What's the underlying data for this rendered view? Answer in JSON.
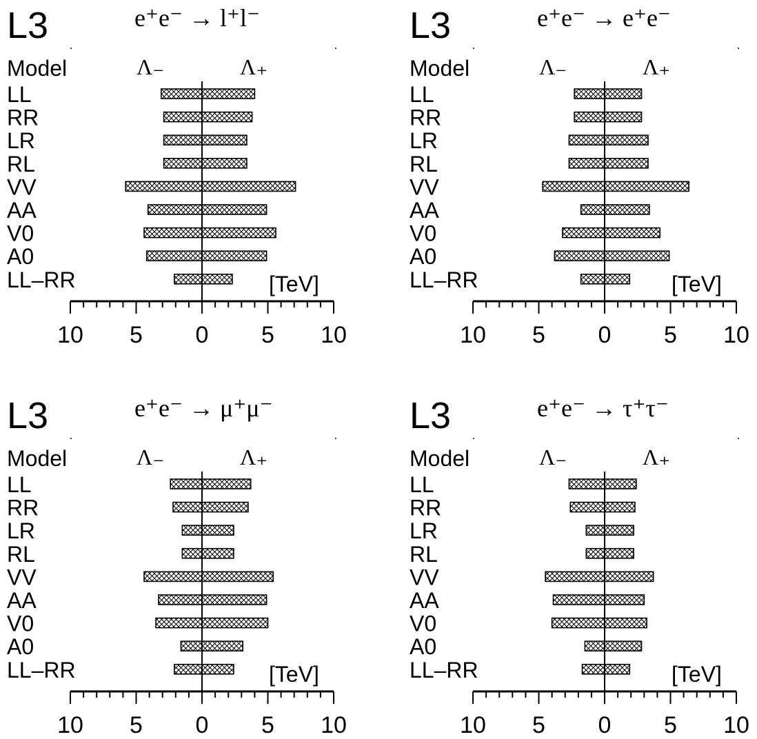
{
  "chart_data": [
    {
      "type": "bar",
      "experiment": "L3",
      "title": "e⁺e⁻ → l⁺l⁻",
      "header": {
        "model": "Model",
        "lambda_minus": "Λ₋",
        "lambda_plus": "Λ₊"
      },
      "unit": "[TeV]",
      "xticks": [
        "10",
        "5",
        "0",
        "5",
        "10"
      ],
      "xlim": [
        -10,
        10
      ],
      "series": [
        {
          "model": "LL",
          "lambda_minus": 3.1,
          "lambda_plus": 4.0
        },
        {
          "model": "RR",
          "lambda_minus": 2.9,
          "lambda_plus": 3.8
        },
        {
          "model": "LR",
          "lambda_minus": 2.9,
          "lambda_plus": 3.4
        },
        {
          "model": "RL",
          "lambda_minus": 2.9,
          "lambda_plus": 3.4
        },
        {
          "model": "VV",
          "lambda_minus": 5.8,
          "lambda_plus": 7.1
        },
        {
          "model": "AA",
          "lambda_minus": 4.1,
          "lambda_plus": 4.9
        },
        {
          "model": "V0",
          "lambda_minus": 4.4,
          "lambda_plus": 5.6
        },
        {
          "model": "A0",
          "lambda_minus": 4.2,
          "lambda_plus": 4.9
        },
        {
          "model": "LL–RR",
          "lambda_minus": 2.1,
          "lambda_plus": 2.3
        }
      ]
    },
    {
      "type": "bar",
      "experiment": "L3",
      "title": "e⁺e⁻ → e⁺e⁻",
      "header": {
        "model": "Model",
        "lambda_minus": "Λ₋",
        "lambda_plus": "Λ₊"
      },
      "unit": "[TeV]",
      "xticks": [
        "10",
        "5",
        "0",
        "5",
        "10"
      ],
      "xlim": [
        -10,
        10
      ],
      "series": [
        {
          "model": "LL",
          "lambda_minus": 2.3,
          "lambda_plus": 2.8
        },
        {
          "model": "RR",
          "lambda_minus": 2.3,
          "lambda_plus": 2.8
        },
        {
          "model": "LR",
          "lambda_minus": 2.7,
          "lambda_plus": 3.3
        },
        {
          "model": "RL",
          "lambda_minus": 2.7,
          "lambda_plus": 3.3
        },
        {
          "model": "VV",
          "lambda_minus": 4.7,
          "lambda_plus": 6.4
        },
        {
          "model": "AA",
          "lambda_minus": 1.8,
          "lambda_plus": 3.4
        },
        {
          "model": "V0",
          "lambda_minus": 3.2,
          "lambda_plus": 4.2
        },
        {
          "model": "A0",
          "lambda_minus": 3.8,
          "lambda_plus": 4.9
        },
        {
          "model": "LL–RR",
          "lambda_minus": 1.8,
          "lambda_plus": 1.9
        }
      ]
    },
    {
      "type": "bar",
      "experiment": "L3",
      "title": "e⁺e⁻ → μ⁺μ⁻",
      "header": {
        "model": "Model",
        "lambda_minus": "Λ₋",
        "lambda_plus": "Λ₊"
      },
      "unit": "[TeV]",
      "xticks": [
        "10",
        "5",
        "0",
        "5",
        "10"
      ],
      "xlim": [
        -10,
        10
      ],
      "series": [
        {
          "model": "LL",
          "lambda_minus": 2.4,
          "lambda_plus": 3.7
        },
        {
          "model": "RR",
          "lambda_minus": 2.2,
          "lambda_plus": 3.5
        },
        {
          "model": "LR",
          "lambda_minus": 1.5,
          "lambda_plus": 2.4
        },
        {
          "model": "RL",
          "lambda_minus": 1.5,
          "lambda_plus": 2.4
        },
        {
          "model": "VV",
          "lambda_minus": 4.4,
          "lambda_plus": 5.4
        },
        {
          "model": "AA",
          "lambda_minus": 3.3,
          "lambda_plus": 4.9
        },
        {
          "model": "V0",
          "lambda_minus": 3.5,
          "lambda_plus": 5.0
        },
        {
          "model": "A0",
          "lambda_minus": 1.6,
          "lambda_plus": 3.1
        },
        {
          "model": "LL–RR",
          "lambda_minus": 2.1,
          "lambda_plus": 2.4
        }
      ]
    },
    {
      "type": "bar",
      "experiment": "L3",
      "title": "e⁺e⁻ → τ⁺τ⁻",
      "header": {
        "model": "Model",
        "lambda_minus": "Λ₋",
        "lambda_plus": "Λ₊"
      },
      "unit": "[TeV]",
      "xticks": [
        "10",
        "5",
        "0",
        "5",
        "10"
      ],
      "xlim": [
        -10,
        10
      ],
      "series": [
        {
          "model": "LL",
          "lambda_minus": 2.7,
          "lambda_plus": 2.4
        },
        {
          "model": "RR",
          "lambda_minus": 2.6,
          "lambda_plus": 2.3
        },
        {
          "model": "LR",
          "lambda_minus": 1.4,
          "lambda_plus": 2.2
        },
        {
          "model": "RL",
          "lambda_minus": 1.4,
          "lambda_plus": 2.2
        },
        {
          "model": "VV",
          "lambda_minus": 4.5,
          "lambda_plus": 3.7
        },
        {
          "model": "AA",
          "lambda_minus": 3.9,
          "lambda_plus": 3.0
        },
        {
          "model": "V0",
          "lambda_minus": 4.0,
          "lambda_plus": 3.2
        },
        {
          "model": "A0",
          "lambda_minus": 1.5,
          "lambda_plus": 2.8
        },
        {
          "model": "LL–RR",
          "lambda_minus": 1.7,
          "lambda_plus": 1.9
        }
      ]
    }
  ]
}
